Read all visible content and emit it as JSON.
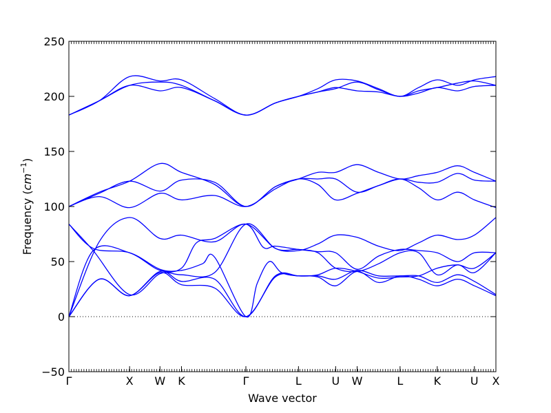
{
  "chart_data": {
    "type": "line",
    "title": "",
    "xlabel": "Wave vector",
    "ylabel": "Frequency",
    "ylabel_unit": "cm",
    "ylabel_unit_exp": "−1",
    "ylim": [
      -50,
      250
    ],
    "y_ticks": [
      -50,
      0,
      50,
      100,
      150,
      200,
      250
    ],
    "grid": false,
    "zero_line": true,
    "line_color": "#0000ff",
    "x_ticks": [
      {
        "label": "Γ",
        "x": 0
      },
      {
        "label": "X",
        "x": 1.0
      },
      {
        "label": "W",
        "x": 1.5
      },
      {
        "label": "K",
        "x": 1.854
      },
      {
        "label": "Γ",
        "x": 2.915
      },
      {
        "label": "L",
        "x": 3.781
      },
      {
        "label": "U",
        "x": 4.393
      },
      {
        "label": "W",
        "x": 4.747
      },
      {
        "label": "L",
        "x": 5.454
      },
      {
        "label": "K",
        "x": 6.066
      },
      {
        "label": "U",
        "x": 6.678
      },
      {
        "label": "X",
        "x": 7.032
      }
    ],
    "xlim": [
      0,
      7.032
    ],
    "series": [
      {
        "x": [
          0,
          0.5,
          1.0,
          1.5,
          1.854,
          2.4,
          2.915,
          3.4,
          3.781,
          4.1,
          4.393,
          4.747,
          5.1,
          5.454,
          5.76,
          6.066,
          6.4,
          6.678,
          7.032
        ],
        "y": [
          0,
          34,
          19,
          40,
          29,
          26,
          0,
          36,
          37,
          36,
          28,
          41,
          31,
          37,
          34,
          28,
          34,
          28,
          19
        ]
      },
      {
        "x": [
          0,
          0.5,
          1.0,
          1.5,
          1.854,
          2.4,
          2.915,
          3.4,
          3.781,
          4.1,
          4.393,
          4.747,
          5.1,
          5.454,
          5.76,
          6.066,
          6.4,
          6.678,
          7.032
        ],
        "y": [
          0,
          34,
          19,
          41,
          32,
          34,
          0,
          37,
          37,
          37,
          34,
          42,
          37,
          37,
          37,
          31,
          38,
          32,
          20
        ]
      },
      {
        "x": [
          0,
          0.4,
          1.0,
          1.5,
          1.854,
          2.2,
          2.4,
          2.915,
          3.1,
          3.3,
          3.5,
          3.781,
          4.1,
          4.393,
          4.747,
          5.1,
          5.454,
          5.76,
          6.066,
          6.4,
          6.678,
          7.032
        ],
        "y": [
          0,
          60,
          58,
          43,
          42,
          48,
          54,
          0,
          30,
          50,
          40,
          37,
          38,
          44,
          41,
          35,
          36,
          37,
          44,
          47,
          44,
          58
        ]
      },
      {
        "x": [
          0,
          0.4,
          1.0,
          1.5,
          1.854,
          2.4,
          2.915,
          3.4,
          3.781,
          4.1,
          4.393,
          4.747,
          5.1,
          5.454,
          5.76,
          6.066,
          6.4,
          6.678,
          7.032
        ],
        "y": [
          84,
          60,
          20,
          39,
          38,
          40,
          84,
          62,
          61,
          58,
          44,
          41,
          48,
          58,
          58,
          38,
          47,
          40,
          58
        ]
      },
      {
        "x": [
          0,
          0.4,
          1.0,
          1.5,
          1.854,
          2.1,
          2.4,
          2.915,
          3.2,
          3.4,
          3.781,
          4.1,
          4.393,
          4.747,
          5.1,
          5.454,
          5.76,
          6.066,
          6.4,
          6.678,
          7.032
        ],
        "y": [
          84,
          62,
          58,
          42,
          44,
          67,
          71,
          84,
          63,
          64,
          61,
          59,
          58,
          43,
          55,
          61,
          60,
          58,
          50,
          58,
          58
        ]
      },
      {
        "x": [
          0,
          0.5,
          1.0,
          1.5,
          1.854,
          2.4,
          2.915,
          3.4,
          3.781,
          4.1,
          4.393,
          4.747,
          5.1,
          5.454,
          5.76,
          6.066,
          6.4,
          6.678,
          7.032
        ],
        "y": [
          0,
          68,
          90,
          71,
          74,
          68,
          84,
          62,
          60,
          66,
          74,
          72,
          64,
          60,
          67,
          74,
          70,
          74,
          90
        ]
      },
      {
        "x": [
          0,
          0.5,
          1.0,
          1.5,
          1.854,
          2.4,
          2.915,
          3.4,
          3.781,
          4.1,
          4.393,
          4.747,
          5.1,
          5.454,
          5.76,
          6.066,
          6.4,
          6.678,
          7.032
        ],
        "y": [
          100,
          109,
          99,
          112,
          106,
          110,
          100,
          116,
          125,
          120,
          106,
          112,
          119,
          125,
          117,
          106,
          113,
          106,
          99
        ]
      },
      {
        "x": [
          0,
          0.5,
          1.0,
          1.5,
          1.854,
          2.4,
          2.915,
          3.4,
          3.781,
          4.1,
          4.393,
          4.747,
          5.1,
          5.454,
          5.76,
          6.066,
          6.4,
          6.678,
          7.032
        ],
        "y": [
          100,
          112,
          123,
          114,
          124,
          122,
          100,
          118,
          125,
          125,
          125,
          113,
          119,
          125,
          122,
          122,
          130,
          124,
          123
        ]
      },
      {
        "x": [
          0,
          0.5,
          1.0,
          1.5,
          1.854,
          2.4,
          2.915,
          3.4,
          3.781,
          4.1,
          4.393,
          4.747,
          5.1,
          5.454,
          5.76,
          6.066,
          6.4,
          6.678,
          7.032
        ],
        "y": [
          100,
          113,
          123,
          139,
          131,
          120,
          100,
          118,
          125,
          131,
          131,
          138,
          131,
          125,
          128,
          131,
          137,
          131,
          123
        ]
      },
      {
        "x": [
          0,
          0.5,
          1.0,
          1.5,
          1.854,
          2.4,
          2.915,
          3.4,
          3.781,
          4.1,
          4.393,
          4.747,
          5.1,
          5.454,
          5.76,
          6.066,
          6.4,
          6.678,
          7.032
        ],
        "y": [
          183,
          196,
          210,
          205,
          208,
          196,
          183,
          194,
          200,
          204,
          208,
          205,
          204,
          200,
          203,
          208,
          205,
          209,
          210
        ]
      },
      {
        "x": [
          0,
          0.5,
          1.0,
          1.5,
          1.854,
          2.4,
          2.915,
          3.4,
          3.781,
          4.1,
          4.393,
          4.747,
          5.1,
          5.454,
          5.76,
          6.066,
          6.4,
          6.678,
          7.032
        ],
        "y": [
          183,
          196,
          210,
          213,
          210,
          196,
          183,
          194,
          200,
          204,
          207,
          213,
          206,
          200,
          205,
          208,
          212,
          214,
          210
        ]
      },
      {
        "x": [
          0,
          0.5,
          1.0,
          1.5,
          1.854,
          2.4,
          2.915,
          3.4,
          3.781,
          4.1,
          4.393,
          4.747,
          5.1,
          5.454,
          5.76,
          6.066,
          6.4,
          6.678,
          7.032
        ],
        "y": [
          183,
          196,
          218,
          214,
          215,
          198,
          183,
          194,
          200,
          207,
          215,
          214,
          207,
          200,
          208,
          215,
          210,
          215,
          218
        ]
      }
    ]
  }
}
